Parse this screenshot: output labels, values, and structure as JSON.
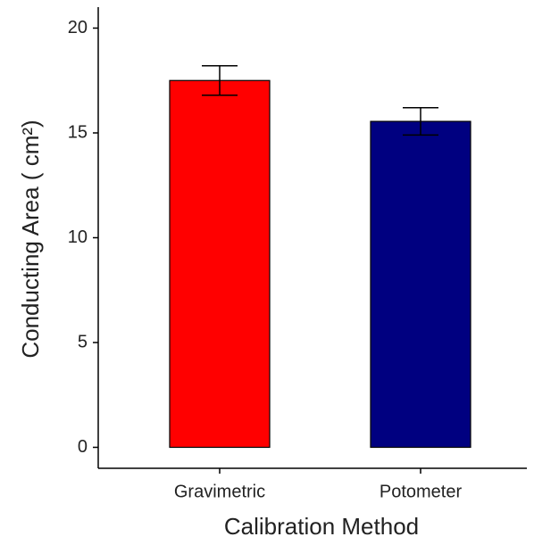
{
  "chart_data": {
    "type": "bar",
    "x_label": "Calibration Method",
    "y_label": "Conducting Area ( cm²)",
    "categories": [
      "Gravimetric",
      "Potometer"
    ],
    "values": [
      17.5,
      15.55
    ],
    "errors": [
      0.7,
      0.65
    ],
    "colors": [
      "#ff0000",
      "#000080"
    ],
    "ylim": [
      -1,
      21
    ],
    "yticks": [
      0,
      5,
      10,
      15,
      20
    ],
    "grid": false
  }
}
